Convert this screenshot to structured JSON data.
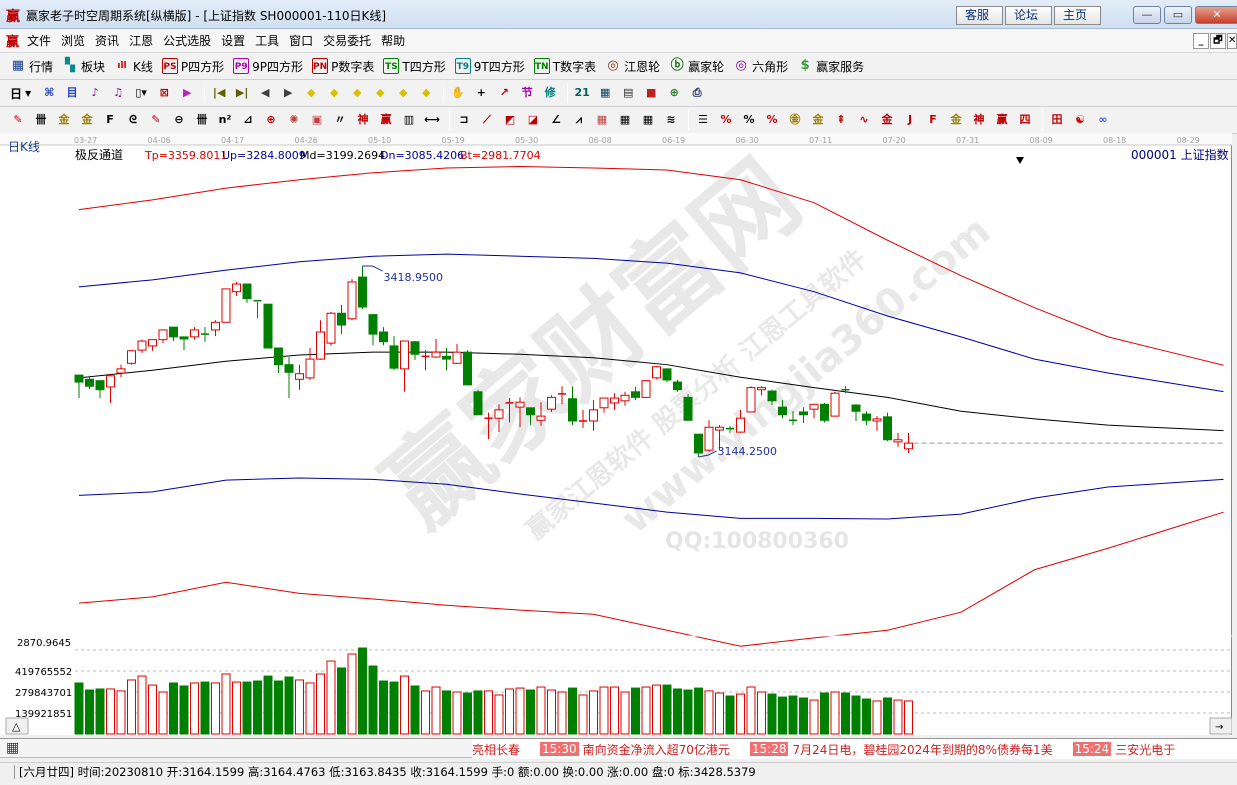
{
  "window": {
    "icon": "赢",
    "title": "赢家老子时空周期系统[纵横版] - [上证指数  SH000001-110日K线]",
    "buttons": [
      "客服",
      "论坛",
      "主页"
    ],
    "controls": {
      "minimize": "—",
      "maximize": "▭",
      "close": "✕"
    }
  },
  "menu": {
    "logo": "赢",
    "items": [
      "文件",
      "浏览",
      "资讯",
      "江恩",
      "公式选股",
      "设置",
      "工具",
      "窗口",
      "交易委托",
      "帮助"
    ],
    "mdi": [
      "_",
      "🗗",
      "✕"
    ]
  },
  "toolbar1": [
    {
      "label": "行情",
      "icon": "quote-table-icon",
      "glyph": "▦",
      "color": "#1a3d8f"
    },
    {
      "label": "板块",
      "icon": "sector-blocks-icon",
      "glyph": "▚",
      "color": "#0a8a8a"
    },
    {
      "label": "K线",
      "icon": "kline-icon",
      "glyph": "ıll",
      "color": "#d00000"
    },
    {
      "label": "P四方形",
      "icon": "ps-icon",
      "glyph": "PS",
      "color": "#c00000"
    },
    {
      "label": "9P四方形",
      "icon": "p9-icon",
      "glyph": "P9",
      "color": "#b000b0"
    },
    {
      "label": "P数字表",
      "icon": "pn-icon",
      "glyph": "PN",
      "color": "#c00000"
    },
    {
      "label": "T四方形",
      "icon": "ts-icon",
      "glyph": "TS",
      "color": "#008000"
    },
    {
      "label": "9T四方形",
      "icon": "t9-icon",
      "glyph": "T9",
      "color": "#008080"
    },
    {
      "label": "T数字表",
      "icon": "tn-icon",
      "glyph": "TN",
      "color": "#008000"
    },
    {
      "label": "江恩轮",
      "icon": "gann-wheel-icon",
      "glyph": "◎",
      "color": "#7a3010"
    },
    {
      "label": "赢家轮",
      "icon": "winner-wheel-icon",
      "glyph": "ⓑ",
      "color": "#207020"
    },
    {
      "label": "六角形",
      "icon": "hexagon-icon",
      "glyph": "◎",
      "color": "#8000a0"
    },
    {
      "label": "赢家服务",
      "icon": "dollar-icon",
      "glyph": "$",
      "color": "#30a030"
    }
  ],
  "toolbar2": {
    "period": "日",
    "icons": [
      {
        "n": "pattern-icon",
        "g": "⌘",
        "c": "#2040c0"
      },
      {
        "n": "notes-icon",
        "g": "目",
        "c": "#2040c0"
      },
      {
        "n": "chart3-icon",
        "g": "♪",
        "c": "#a000a0"
      },
      {
        "n": "chart9-icon",
        "g": "♫",
        "c": "#a000a0"
      },
      {
        "n": "candle-select-icon",
        "g": "▯▾",
        "c": "#000"
      },
      {
        "n": "cross-pattern-icon",
        "g": "⊠",
        "c": "#c00000"
      },
      {
        "n": "flag-icon",
        "g": "▶",
        "c": "#c020c0"
      },
      {
        "sep": true
      },
      {
        "n": "first-icon",
        "g": "|◀",
        "c": "#606000"
      },
      {
        "n": "last-icon",
        "g": "▶|",
        "c": "#606000"
      },
      {
        "n": "prev-icon",
        "g": "◀",
        "c": "#404040"
      },
      {
        "n": "next-icon",
        "g": "▶",
        "c": "#404040"
      },
      {
        "n": "shift-left-icon",
        "g": "◆",
        "c": "#d8c000"
      },
      {
        "n": "shift-right-icon",
        "g": "◆",
        "c": "#d8c000"
      },
      {
        "n": "expand-h-icon",
        "g": "◆",
        "c": "#d8c000"
      },
      {
        "n": "zoom-in-icon",
        "g": "◆",
        "c": "#d8c000"
      },
      {
        "n": "zoom-out-icon",
        "g": "◆",
        "c": "#d8c000"
      },
      {
        "n": "expand-v-icon",
        "g": "◆",
        "c": "#d8c000"
      },
      {
        "sep": true
      },
      {
        "n": "hand-icon",
        "g": "✋",
        "c": "#000"
      },
      {
        "n": "crosshair-icon",
        "g": "+",
        "c": "#000"
      },
      {
        "n": "draw-line-icon",
        "g": "↗",
        "c": "#c00000"
      },
      {
        "n": "solar-term-icon",
        "g": "节",
        "c": "#a000a0"
      },
      {
        "n": "modify-icon",
        "g": "修",
        "c": "#008080"
      },
      {
        "sep": true
      },
      {
        "n": "calendar-icon",
        "g": "21",
        "c": "#006060"
      },
      {
        "n": "calculator-icon",
        "g": "▦",
        "c": "#004060"
      },
      {
        "n": "notebook-icon",
        "g": "▤",
        "c": "#303030"
      },
      {
        "n": "save-icon",
        "g": "■",
        "c": "#c02020"
      },
      {
        "n": "network-icon",
        "g": "⊕",
        "c": "#208020"
      },
      {
        "n": "printer-icon",
        "g": "⎙",
        "c": "#203060"
      }
    ]
  },
  "toolbar3": [
    {
      "n": "pen-icon",
      "g": "✎",
      "c": "#c00000"
    },
    {
      "n": "grid-lines-icon",
      "g": "卌",
      "c": "#000"
    },
    {
      "n": "gold-line-icon",
      "g": "金",
      "c": "#a08000"
    },
    {
      "n": "gold-line2-icon",
      "g": "金",
      "c": "#a08000"
    },
    {
      "n": "fib-line-icon",
      "g": "F",
      "c": "#000"
    },
    {
      "n": "spiral-icon",
      "g": "ᘓ",
      "c": "#000"
    },
    {
      "n": "pen2-icon",
      "g": "✎",
      "c": "#c00000"
    },
    {
      "n": "circle-icon",
      "g": "⊖",
      "c": "#000"
    },
    {
      "n": "parallel-icon",
      "g": "卌",
      "c": "#000"
    },
    {
      "n": "n2-icon",
      "g": "n²",
      "c": "#000"
    },
    {
      "n": "triangle-icon",
      "g": "⊿",
      "c": "#000"
    },
    {
      "n": "target-icon",
      "g": "⊕",
      "c": "#c00000"
    },
    {
      "n": "star-icon",
      "g": "✺",
      "c": "#c04040"
    },
    {
      "n": "box-icon",
      "g": "▣",
      "c": "#c04040"
    },
    {
      "n": "quote-line-icon",
      "g": "〃",
      "c": "#000"
    },
    {
      "n": "god-icon",
      "g": "神",
      "c": "#c00000"
    },
    {
      "n": "win-icon",
      "g": "赢",
      "c": "#c00000"
    },
    {
      "n": "ruler-icon",
      "g": "▥",
      "c": "#000"
    },
    {
      "n": "measure-icon",
      "g": "⟷",
      "c": "#000"
    },
    {
      "sep": true
    },
    {
      "n": "frame-icon",
      "g": "⊐",
      "c": "#000"
    },
    {
      "n": "fan-icon",
      "g": "⟋",
      "c": "#c00000"
    },
    {
      "n": "fan-box-icon",
      "g": "◩",
      "c": "#c00000"
    },
    {
      "n": "fan-box2-icon",
      "g": "◪",
      "c": "#c00000"
    },
    {
      "n": "angle-icon",
      "g": "∠",
      "c": "#000"
    },
    {
      "n": "wave-icon",
      "g": "⩘",
      "c": "#000"
    },
    {
      "n": "grid-icon",
      "g": "▦",
      "c": "#c04040"
    },
    {
      "n": "grid2-icon",
      "g": "▦",
      "c": "#000"
    },
    {
      "n": "grid3-icon",
      "g": "▦",
      "c": "#000"
    },
    {
      "n": "multi-line-icon",
      "g": "≋",
      "c": "#000"
    },
    {
      "sep": true
    },
    {
      "n": "bars-icon",
      "g": "☰",
      "c": "#000"
    },
    {
      "n": "percent-line-icon",
      "g": "%",
      "c": "#c00000"
    },
    {
      "n": "percent-icon",
      "g": "%",
      "c": "#000"
    },
    {
      "n": "percent-lines-icon",
      "g": "%",
      "c": "#c00000"
    },
    {
      "n": "gold-circle-icon",
      "g": "㊎",
      "c": "#a08000"
    },
    {
      "n": "gold-lines-icon",
      "g": "金",
      "c": "#a08000"
    },
    {
      "n": "rocket-icon",
      "g": "⇞",
      "c": "#c00000"
    },
    {
      "n": "sine-icon",
      "g": "∿",
      "c": "#c00000"
    },
    {
      "n": "gold-box-icon",
      "g": "金",
      "c": "#c00000"
    },
    {
      "n": "j-fan-icon",
      "g": "J",
      "c": "#c00000"
    },
    {
      "n": "f-fan-icon",
      "g": "F",
      "c": "#c00000"
    },
    {
      "n": "gold-fan-icon",
      "g": "金",
      "c": "#a08000"
    },
    {
      "n": "god-fan-icon",
      "g": "神",
      "c": "#c00000"
    },
    {
      "n": "win-fan-icon",
      "g": "赢",
      "c": "#c00000"
    },
    {
      "n": "four-fan-icon",
      "g": "四",
      "c": "#c00000"
    },
    {
      "sep": true
    },
    {
      "n": "table-grid-icon",
      "g": "田",
      "c": "#c00000"
    },
    {
      "n": "yin-yang-icon",
      "g": "☯",
      "c": "#d00000"
    },
    {
      "n": "infinity-icon",
      "g": "∞",
      "c": "#4060d0"
    }
  ],
  "chart": {
    "period_label": "日K线",
    "indicator": {
      "name": "极反通道",
      "tp": "Tp=3359.8011",
      "up": "Up=3284.8009",
      "md": "Md=3199.2694",
      "dn": "Dn=3085.4206",
      "bt": "Bt=2981.7704"
    },
    "symbol_label": "000001  上证指数",
    "colors": {
      "up": "#e00000",
      "down": "#008000",
      "tp": "#e00000",
      "upper": "#0000a0",
      "mid": "#000000",
      "lower": "#0000a0",
      "bottom": "#e00000",
      "label": "#2030a0"
    },
    "annotations": {
      "high": "3418.9500",
      "low": "3144.2500"
    },
    "price_axis_bottom_label": "2870.9645",
    "watermark": {
      "main": "赢家财富网",
      "sub": "赢家江恩软件 股票分析 江恩工具软件",
      "url": "www.yingjia360.com",
      "qq": "QQ:100800360"
    }
  },
  "chart_data": {
    "type": "candlestick",
    "x_ticks": [
      "03-27",
      "04-06",
      "04-17",
      "04-26",
      "05-10",
      "05-19",
      "05-30",
      "06-08",
      "06-19",
      "06-30",
      "07-11",
      "07-20",
      "07-31",
      "08-09",
      "08-18",
      "08-29"
    ],
    "bars_per_tick": 7,
    "total_bars": 110,
    "ylim": [
      2870.9645,
      3586
    ],
    "ohlc": [
      [
        3262,
        3262,
        3229,
        3252
      ],
      [
        3256,
        3261,
        3242,
        3246
      ],
      [
        3254,
        3254,
        3229,
        3241
      ],
      [
        3245,
        3264,
        3222,
        3261
      ],
      [
        3265,
        3277,
        3259,
        3271
      ],
      [
        3279,
        3298,
        3277,
        3297
      ],
      [
        3298,
        3313,
        3294,
        3311
      ],
      [
        3304,
        3313,
        3297,
        3313
      ],
      [
        3313,
        3327,
        3308,
        3327
      ],
      [
        3331,
        3331,
        3311,
        3317
      ],
      [
        3317,
        3317,
        3298,
        3314
      ],
      [
        3317,
        3331,
        3313,
        3327
      ],
      [
        3321,
        3331,
        3310,
        3320
      ],
      [
        3327,
        3341,
        3318,
        3338
      ],
      [
        3338,
        3386,
        3338,
        3386
      ],
      [
        3382,
        3396,
        3376,
        3393
      ],
      [
        3393,
        3393,
        3366,
        3372
      ],
      [
        3369,
        3370,
        3344,
        3367
      ],
      [
        3364,
        3364,
        3301,
        3301
      ],
      [
        3301,
        3301,
        3265,
        3277
      ],
      [
        3277,
        3288,
        3229,
        3266
      ],
      [
        3256,
        3277,
        3241,
        3264
      ],
      [
        3258,
        3301,
        3255,
        3285
      ],
      [
        3285,
        3341,
        3284,
        3324
      ],
      [
        3308,
        3353,
        3304,
        3351
      ],
      [
        3351,
        3363,
        3321,
        3334
      ],
      [
        3343,
        3400,
        3341,
        3396
      ],
      [
        3403,
        3418.95,
        3357,
        3360
      ],
      [
        3349,
        3349,
        3305,
        3321
      ],
      [
        3324,
        3331,
        3305,
        3310
      ],
      [
        3304,
        3318,
        3269,
        3272
      ],
      [
        3271,
        3311,
        3238,
        3311
      ],
      [
        3310,
        3311,
        3284,
        3292
      ],
      [
        3288,
        3298,
        3269,
        3289
      ],
      [
        3288,
        3314,
        3287,
        3295
      ],
      [
        3289,
        3301,
        3269,
        3285
      ],
      [
        3279,
        3307,
        3278,
        3295
      ],
      [
        3295,
        3298,
        3248,
        3248
      ],
      [
        3238,
        3241,
        3205,
        3205
      ],
      [
        3199,
        3208,
        3170,
        3200
      ],
      [
        3200,
        3220,
        3180,
        3212
      ],
      [
        3220,
        3229,
        3194,
        3222
      ],
      [
        3216,
        3230,
        3187,
        3223
      ],
      [
        3215,
        3215,
        3190,
        3205
      ],
      [
        3197,
        3223,
        3189,
        3203
      ],
      [
        3213,
        3233,
        3209,
        3230
      ],
      [
        3234,
        3246,
        3220,
        3235
      ],
      [
        3228,
        3246,
        3190,
        3196
      ],
      [
        3195,
        3212,
        3186,
        3196
      ],
      [
        3196,
        3226,
        3182,
        3212
      ],
      [
        3215,
        3229,
        3208,
        3229
      ],
      [
        3222,
        3236,
        3212,
        3229
      ],
      [
        3225,
        3238,
        3218,
        3233
      ],
      [
        3238,
        3245,
        3226,
        3230
      ],
      [
        3230,
        3255,
        3229,
        3254
      ],
      [
        3258,
        3275,
        3256,
        3274
      ],
      [
        3271,
        3271,
        3252,
        3255
      ],
      [
        3252,
        3255,
        3238,
        3241
      ],
      [
        3230,
        3235,
        3197,
        3197
      ],
      [
        3177,
        3177,
        3144.25,
        3150
      ],
      [
        3154,
        3197,
        3151,
        3187
      ],
      [
        3183,
        3190,
        3154,
        3187
      ],
      [
        3185,
        3189,
        3179,
        3184
      ],
      [
        3180,
        3212,
        3179,
        3200
      ],
      [
        3209,
        3246,
        3209,
        3244
      ],
      [
        3241,
        3246,
        3233,
        3244
      ],
      [
        3239,
        3241,
        3219,
        3225
      ],
      [
        3216,
        3226,
        3200,
        3205
      ],
      [
        3197,
        3210,
        3190,
        3196
      ],
      [
        3209,
        3216,
        3193,
        3205
      ],
      [
        3213,
        3220,
        3200,
        3220
      ],
      [
        3220,
        3222,
        3194,
        3197
      ],
      [
        3203,
        3238,
        3203,
        3236
      ],
      [
        3241,
        3246,
        3236,
        3240
      ],
      [
        3219,
        3220,
        3196,
        3210
      ],
      [
        3206,
        3210,
        3190,
        3197
      ],
      [
        3196,
        3203,
        3182,
        3199
      ],
      [
        3202,
        3208,
        3167,
        3169
      ],
      [
        3166,
        3179,
        3159,
        3169
      ],
      [
        3156,
        3179,
        3150,
        3164.16
      ]
    ],
    "channel": {
      "tp": [
        3500,
        3514,
        3531,
        3543,
        3553,
        3560,
        3562,
        3560,
        3557,
        3543,
        3510,
        3456,
        3405,
        3359,
        3317,
        3291
      ],
      "up": [
        3389,
        3399,
        3413,
        3425,
        3433,
        3436,
        3433,
        3430,
        3423,
        3409,
        3382,
        3347,
        3317,
        3285,
        3265,
        3248
      ],
      "md": [
        3258,
        3269,
        3282,
        3291,
        3295,
        3295,
        3292,
        3287,
        3277,
        3259,
        3244,
        3230,
        3210,
        3199,
        3190,
        3185
      ],
      "dn": [
        3089,
        3094,
        3111,
        3114,
        3112,
        3105,
        3091,
        3078,
        3065,
        3056,
        3056,
        3055,
        3062,
        3085,
        3101,
        3108
      ],
      "bt": [
        2934,
        2943,
        2964,
        2948,
        2940,
        2931,
        2924,
        2918,
        2895,
        2872,
        2884,
        2895,
        2921,
        2982,
        3013,
        3046
      ]
    },
    "volume": {
      "axis_labels": [
        "419765552",
        "279843701",
        "139921851"
      ],
      "axis_values": [
        419765552,
        279843701,
        139921851
      ],
      "values": [
        340000000,
        293000000,
        300000000,
        300000000,
        287000000,
        360000000,
        386000000,
        326000000,
        280000000,
        340000000,
        320000000,
        340000000,
        346000000,
        340000000,
        400000000,
        346000000,
        346000000,
        353000000,
        386000000,
        353000000,
        380000000,
        360000000,
        340000000,
        400000000,
        486000000,
        440000000,
        533000000,
        573000000,
        453000000,
        353000000,
        346000000,
        386000000,
        320000000,
        287000000,
        313000000,
        287000000,
        280000000,
        273000000,
        287000000,
        287000000,
        260000000,
        300000000,
        306000000,
        293000000,
        313000000,
        293000000,
        280000000,
        306000000,
        260000000,
        287000000,
        313000000,
        313000000,
        280000000,
        306000000,
        313000000,
        326000000,
        326000000,
        300000000,
        293000000,
        306000000,
        287000000,
        273000000,
        253000000,
        266000000,
        313000000,
        280000000,
        266000000,
        246000000,
        253000000,
        240000000,
        226000000,
        273000000,
        280000000,
        273000000,
        253000000,
        233000000,
        220000000,
        240000000,
        226000000,
        220000000
      ]
    }
  },
  "ticker": {
    "lead": "亮相长春",
    "items": [
      {
        "time": "15:30",
        "text": "南向资金净流入超70亿港元"
      },
      {
        "time": "15:28",
        "text": "7月24日电，碧桂园2024年到期的8%债券每1美"
      },
      {
        "time": "15:24",
        "text": "三安光电于"
      }
    ]
  },
  "status": "[六月廿四] 时间:20230810 开:3164.1599 高:3164.4763 低:3163.8435 收:3164.1599 手:0 额:0.00 换:0.00 涨:0.00 盘:0 标:3428.5379",
  "buttons": {
    "volume_toggle": "△",
    "scroll_right": "→"
  }
}
